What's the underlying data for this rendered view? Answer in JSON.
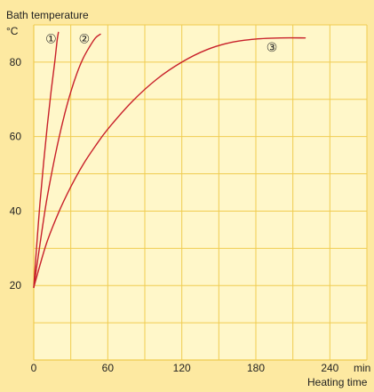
{
  "chart_data": {
    "type": "line",
    "ylabel": "Bath temperature",
    "yunit": "°C",
    "xlabel": "Heating time",
    "xunit": "min",
    "xlim": [
      0,
      270
    ],
    "ylim": [
      0,
      90
    ],
    "x_ticks": [
      0,
      60,
      120,
      180,
      240
    ],
    "y_ticks": [
      20,
      40,
      60,
      80
    ],
    "grid": true,
    "colors": {
      "background": "#fde9a1",
      "plot_background": "#fff7c9",
      "grid": "#f0cc50",
      "curve": "#c8202a"
    },
    "series": [
      {
        "label": "①",
        "x": [
          0,
          2,
          5,
          8,
          11,
          14,
          17,
          19,
          20
        ],
        "y": [
          19.5,
          29,
          42,
          53,
          63,
          72,
          80,
          86,
          88
        ]
      },
      {
        "label": "②",
        "x": [
          0,
          5,
          10,
          15,
          20,
          25,
          30,
          35,
          40,
          45,
          50,
          54
        ],
        "y": [
          19.5,
          31,
          42,
          51,
          59,
          66,
          72,
          77,
          81,
          84,
          86.5,
          87.5
        ]
      },
      {
        "label": "③",
        "x": [
          0,
          10,
          20,
          30,
          40,
          50,
          60,
          80,
          100,
          120,
          140,
          160,
          180,
          200,
          220
        ],
        "y": [
          19.5,
          31,
          39.5,
          46.5,
          52.5,
          57.5,
          62,
          69.5,
          75.5,
          80,
          83.3,
          85.3,
          86.2,
          86.5,
          86.5
        ]
      }
    ],
    "curve_labels": [
      {
        "text": "①",
        "x": 14,
        "y": 86.3
      },
      {
        "text": "②",
        "x": 41,
        "y": 86.3
      },
      {
        "text": "③",
        "x": 193,
        "y": 84
      }
    ]
  }
}
